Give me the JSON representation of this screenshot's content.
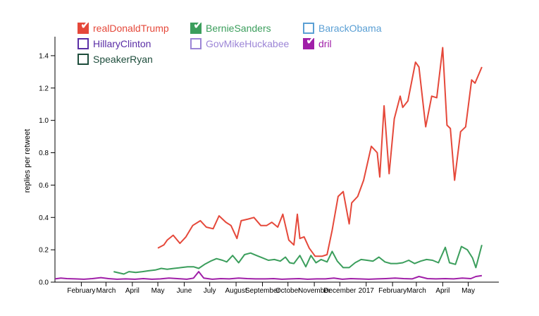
{
  "chart_data": {
    "type": "line",
    "ylabel": "replies per retweet",
    "xlabel": "",
    "ylim": [
      0,
      1.5
    ],
    "yticks": [
      0.0,
      0.2,
      0.4,
      0.6,
      0.8,
      1.0,
      1.2,
      1.4
    ],
    "ytick_labels": [
      "0.0",
      "0.2",
      "0.4",
      "0.6",
      "0.8",
      "1.0",
      "1.2",
      "1.4"
    ],
    "xlim": [
      "2016-01-01",
      "2017-06-06"
    ],
    "xticks": [
      {
        "date": "2016-02-01",
        "label": "February"
      },
      {
        "date": "2016-03-01",
        "label": "March"
      },
      {
        "date": "2016-04-01",
        "label": "April"
      },
      {
        "date": "2016-05-01",
        "label": "May"
      },
      {
        "date": "2016-06-01",
        "label": "June"
      },
      {
        "date": "2016-07-01",
        "label": "July"
      },
      {
        "date": "2016-08-01",
        "label": "August"
      },
      {
        "date": "2016-09-01",
        "label": "September"
      },
      {
        "date": "2016-10-01",
        "label": "October"
      },
      {
        "date": "2016-11-01",
        "label": "November"
      },
      {
        "date": "2016-12-01",
        "label": "December"
      },
      {
        "date": "2017-01-01",
        "label": "2017"
      },
      {
        "date": "2017-02-01",
        "label": "February"
      },
      {
        "date": "2017-03-01",
        "label": "March"
      },
      {
        "date": "2017-04-01",
        "label": "April"
      },
      {
        "date": "2017-05-01",
        "label": "May"
      }
    ],
    "series": [
      {
        "name": "realDonaldTrump",
        "color": "#e5483a",
        "checked": true,
        "points": [
          [
            "2016-05-01",
            0.21
          ],
          [
            "2016-05-08",
            0.23
          ],
          [
            "2016-05-12",
            0.26
          ],
          [
            "2016-05-19",
            0.29
          ],
          [
            "2016-05-27",
            0.24
          ],
          [
            "2016-06-03",
            0.28
          ],
          [
            "2016-06-11",
            0.35
          ],
          [
            "2016-06-20",
            0.38
          ],
          [
            "2016-06-27",
            0.34
          ],
          [
            "2016-07-05",
            0.33
          ],
          [
            "2016-07-12",
            0.41
          ],
          [
            "2016-07-20",
            0.37
          ],
          [
            "2016-07-26",
            0.35
          ],
          [
            "2016-08-02",
            0.27
          ],
          [
            "2016-08-07",
            0.38
          ],
          [
            "2016-08-15",
            0.39
          ],
          [
            "2016-08-22",
            0.4
          ],
          [
            "2016-08-30",
            0.35
          ],
          [
            "2016-09-06",
            0.35
          ],
          [
            "2016-09-12",
            0.37
          ],
          [
            "2016-09-19",
            0.34
          ],
          [
            "2016-09-25",
            0.42
          ],
          [
            "2016-10-02",
            0.26
          ],
          [
            "2016-10-08",
            0.23
          ],
          [
            "2016-10-12",
            0.42
          ],
          [
            "2016-10-15",
            0.27
          ],
          [
            "2016-10-20",
            0.28
          ],
          [
            "2016-10-26",
            0.21
          ],
          [
            "2016-11-02",
            0.16
          ],
          [
            "2016-11-10",
            0.16
          ],
          [
            "2016-11-16",
            0.17
          ],
          [
            "2016-11-22",
            0.32
          ],
          [
            "2016-11-29",
            0.53
          ],
          [
            "2016-12-05",
            0.56
          ],
          [
            "2016-12-12",
            0.36
          ],
          [
            "2016-12-15",
            0.49
          ],
          [
            "2016-12-22",
            0.53
          ],
          [
            "2016-12-29",
            0.63
          ],
          [
            "2017-01-07",
            0.84
          ],
          [
            "2017-01-14",
            0.8
          ],
          [
            "2017-01-17",
            0.65
          ],
          [
            "2017-01-22",
            1.09
          ],
          [
            "2017-01-28",
            0.67
          ],
          [
            "2017-02-03",
            1.01
          ],
          [
            "2017-02-10",
            1.15
          ],
          [
            "2017-02-13",
            1.08
          ],
          [
            "2017-02-19",
            1.12
          ],
          [
            "2017-02-28",
            1.36
          ],
          [
            "2017-03-04",
            1.33
          ],
          [
            "2017-03-12",
            0.96
          ],
          [
            "2017-03-19",
            1.15
          ],
          [
            "2017-03-25",
            1.14
          ],
          [
            "2017-04-01",
            1.45
          ],
          [
            "2017-04-06",
            0.97
          ],
          [
            "2017-04-10",
            0.95
          ],
          [
            "2017-04-15",
            0.63
          ],
          [
            "2017-04-22",
            0.93
          ],
          [
            "2017-04-28",
            0.96
          ],
          [
            "2017-05-05",
            1.25
          ],
          [
            "2017-05-09",
            1.23
          ],
          [
            "2017-05-17",
            1.33
          ]
        ]
      },
      {
        "name": "BernieSanders",
        "color": "#3b9e5c",
        "checked": true,
        "points": [
          [
            "2016-03-10",
            0.065
          ],
          [
            "2016-03-18",
            0.055
          ],
          [
            "2016-03-22",
            0.05
          ],
          [
            "2016-03-28",
            0.065
          ],
          [
            "2016-04-05",
            0.06
          ],
          [
            "2016-04-13",
            0.065
          ],
          [
            "2016-04-20",
            0.07
          ],
          [
            "2016-04-28",
            0.075
          ],
          [
            "2016-05-05",
            0.085
          ],
          [
            "2016-05-12",
            0.08
          ],
          [
            "2016-05-20",
            0.085
          ],
          [
            "2016-05-28",
            0.09
          ],
          [
            "2016-06-05",
            0.095
          ],
          [
            "2016-06-12",
            0.095
          ],
          [
            "2016-06-18",
            0.085
          ],
          [
            "2016-06-25",
            0.11
          ],
          [
            "2016-07-02",
            0.13
          ],
          [
            "2016-07-09",
            0.145
          ],
          [
            "2016-07-16",
            0.135
          ],
          [
            "2016-07-21",
            0.125
          ],
          [
            "2016-07-28",
            0.165
          ],
          [
            "2016-08-04",
            0.12
          ],
          [
            "2016-08-11",
            0.17
          ],
          [
            "2016-08-18",
            0.18
          ],
          [
            "2016-08-25",
            0.165
          ],
          [
            "2016-09-01",
            0.15
          ],
          [
            "2016-09-08",
            0.135
          ],
          [
            "2016-09-15",
            0.14
          ],
          [
            "2016-09-22",
            0.13
          ],
          [
            "2016-09-28",
            0.155
          ],
          [
            "2016-10-03",
            0.12
          ],
          [
            "2016-10-08",
            0.115
          ],
          [
            "2016-10-15",
            0.165
          ],
          [
            "2016-10-22",
            0.095
          ],
          [
            "2016-10-28",
            0.165
          ],
          [
            "2016-11-03",
            0.12
          ],
          [
            "2016-11-09",
            0.14
          ],
          [
            "2016-11-16",
            0.125
          ],
          [
            "2016-11-22",
            0.19
          ],
          [
            "2016-11-28",
            0.13
          ],
          [
            "2016-12-05",
            0.09
          ],
          [
            "2016-12-12",
            0.09
          ],
          [
            "2016-12-19",
            0.12
          ],
          [
            "2016-12-26",
            0.14
          ],
          [
            "2017-01-02",
            0.135
          ],
          [
            "2017-01-09",
            0.13
          ],
          [
            "2017-01-16",
            0.155
          ],
          [
            "2017-01-23",
            0.125
          ],
          [
            "2017-01-30",
            0.115
          ],
          [
            "2017-02-06",
            0.115
          ],
          [
            "2017-02-13",
            0.12
          ],
          [
            "2017-02-20",
            0.135
          ],
          [
            "2017-02-27",
            0.115
          ],
          [
            "2017-03-06",
            0.13
          ],
          [
            "2017-03-13",
            0.14
          ],
          [
            "2017-03-20",
            0.135
          ],
          [
            "2017-03-27",
            0.12
          ],
          [
            "2017-04-04",
            0.215
          ],
          [
            "2017-04-09",
            0.12
          ],
          [
            "2017-04-16",
            0.11
          ],
          [
            "2017-04-23",
            0.22
          ],
          [
            "2017-04-30",
            0.2
          ],
          [
            "2017-05-06",
            0.15
          ],
          [
            "2017-05-10",
            0.09
          ],
          [
            "2017-05-17",
            0.23
          ]
        ]
      },
      {
        "name": "BarackObama",
        "color": "#5a9fd4",
        "checked": false,
        "points": []
      },
      {
        "name": "HillaryClinton",
        "color": "#5a2ea6",
        "checked": false,
        "points": []
      },
      {
        "name": "GovMikeHuckabee",
        "color": "#9c85d6",
        "checked": false,
        "points": []
      },
      {
        "name": "dril",
        "color": "#a01fa8",
        "checked": true,
        "points": [
          [
            "2016-01-01",
            0.02
          ],
          [
            "2016-01-08",
            0.025
          ],
          [
            "2016-01-15",
            0.022
          ],
          [
            "2016-01-25",
            0.02
          ],
          [
            "2016-02-04",
            0.018
          ],
          [
            "2016-02-14",
            0.022
          ],
          [
            "2016-02-24",
            0.028
          ],
          [
            "2016-03-04",
            0.022
          ],
          [
            "2016-03-14",
            0.018
          ],
          [
            "2016-03-24",
            0.02
          ],
          [
            "2016-04-04",
            0.018
          ],
          [
            "2016-04-14",
            0.022
          ],
          [
            "2016-04-24",
            0.018
          ],
          [
            "2016-05-04",
            0.02
          ],
          [
            "2016-05-14",
            0.025
          ],
          [
            "2016-05-24",
            0.022
          ],
          [
            "2016-06-04",
            0.018
          ],
          [
            "2016-06-12",
            0.025
          ],
          [
            "2016-06-18",
            0.065
          ],
          [
            "2016-06-24",
            0.025
          ],
          [
            "2016-07-04",
            0.018
          ],
          [
            "2016-07-14",
            0.022
          ],
          [
            "2016-07-24",
            0.02
          ],
          [
            "2016-08-04",
            0.025
          ],
          [
            "2016-08-14",
            0.022
          ],
          [
            "2016-08-24",
            0.02
          ],
          [
            "2016-09-04",
            0.02
          ],
          [
            "2016-09-14",
            0.022
          ],
          [
            "2016-09-24",
            0.018
          ],
          [
            "2016-10-04",
            0.02
          ],
          [
            "2016-10-14",
            0.022
          ],
          [
            "2016-10-24",
            0.018
          ],
          [
            "2016-11-04",
            0.02
          ],
          [
            "2016-11-14",
            0.02
          ],
          [
            "2016-11-24",
            0.025
          ],
          [
            "2016-12-04",
            0.018
          ],
          [
            "2016-12-14",
            0.022
          ],
          [
            "2016-12-24",
            0.02
          ],
          [
            "2017-01-04",
            0.018
          ],
          [
            "2017-01-14",
            0.02
          ],
          [
            "2017-01-24",
            0.022
          ],
          [
            "2017-02-04",
            0.025
          ],
          [
            "2017-02-14",
            0.022
          ],
          [
            "2017-02-24",
            0.02
          ],
          [
            "2017-03-04",
            0.035
          ],
          [
            "2017-03-14",
            0.022
          ],
          [
            "2017-03-24",
            0.02
          ],
          [
            "2017-04-04",
            0.022
          ],
          [
            "2017-04-14",
            0.02
          ],
          [
            "2017-04-24",
            0.025
          ],
          [
            "2017-05-04",
            0.022
          ],
          [
            "2017-05-10",
            0.035
          ],
          [
            "2017-05-17",
            0.04
          ]
        ]
      },
      {
        "name": "SpeakerRyan",
        "color": "#1e4d3c",
        "checked": false,
        "points": []
      }
    ]
  }
}
